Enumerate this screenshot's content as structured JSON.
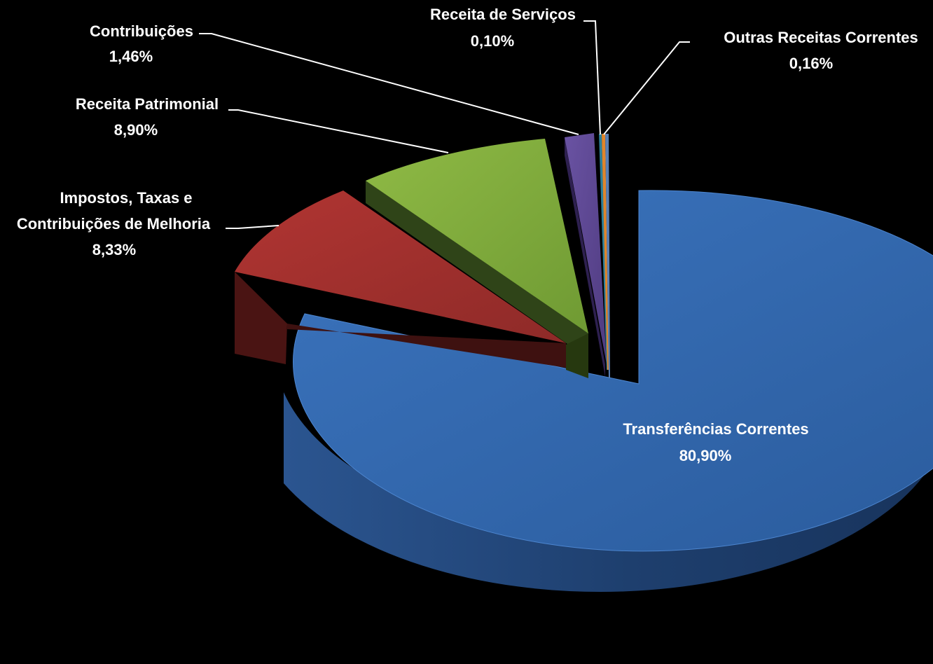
{
  "chart_data": {
    "type": "pie",
    "style": "3d-exploded",
    "unit": "%",
    "slices": [
      {
        "label": "Transferências Correntes",
        "value": 80.9,
        "display": "80,90%",
        "color": "#2E63A8"
      },
      {
        "label": "Impostos, Taxas e Contribuições de Melhoria",
        "value": 8.33,
        "display": "8,33%",
        "color": "#9B2B2A"
      },
      {
        "label": "Receita Patrimonial",
        "value": 8.9,
        "display": "8,90%",
        "color": "#7DA63A"
      },
      {
        "label": "Contribuições",
        "value": 1.46,
        "display": "1,46%",
        "color": "#5E4791"
      },
      {
        "label": "Receita de Serviços",
        "value": 0.1,
        "display": "0,10%",
        "color": "#2C7F9A"
      },
      {
        "label": "Outras Receitas Correntes",
        "value": 0.16,
        "display": "0,16%",
        "color": "#E0852A"
      }
    ],
    "label_lines": {
      "impostos": [
        "Impostos, Taxas e",
        "Contribuições de Melhoria"
      ]
    },
    "legend": "none"
  }
}
